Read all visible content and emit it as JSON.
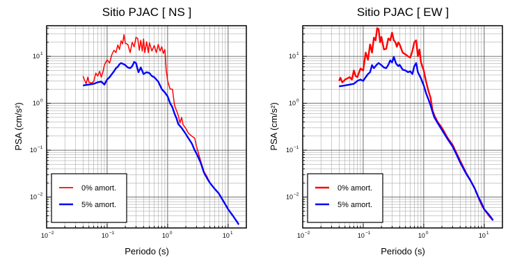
{
  "chart_data": [
    {
      "type": "line",
      "title": "Sitio PJAC [ NS ]",
      "xlabel": "Periodo (s)",
      "ylabel": "PSA (cm/s²)",
      "xscale": "log",
      "yscale": "log",
      "xlim": [
        0.01,
        20
      ],
      "ylim": [
        0.0022,
        45
      ],
      "grid": true,
      "legend_position": "bottom-left",
      "xticks": [
        {
          "base": "10",
          "exp": "-2"
        },
        {
          "base": "10",
          "exp": "-1"
        },
        {
          "base": "10",
          "exp": "0"
        },
        {
          "base": "10",
          "exp": "1"
        }
      ],
      "yticks": [
        {
          "base": "10",
          "exp": "-2"
        },
        {
          "base": "10",
          "exp": "-1"
        },
        {
          "base": "10",
          "exp": "0"
        },
        {
          "base": "10",
          "exp": "1"
        }
      ],
      "series": [
        {
          "name": "0% amort.",
          "color": "#ff0000",
          "x": [
            0.04,
            0.042,
            0.045,
            0.048,
            0.05,
            0.055,
            0.06,
            0.065,
            0.07,
            0.075,
            0.08,
            0.085,
            0.09,
            0.1,
            0.11,
            0.12,
            0.13,
            0.14,
            0.15,
            0.16,
            0.17,
            0.18,
            0.19,
            0.2,
            0.22,
            0.24,
            0.26,
            0.28,
            0.3,
            0.32,
            0.34,
            0.36,
            0.38,
            0.4,
            0.42,
            0.45,
            0.48,
            0.5,
            0.55,
            0.6,
            0.65,
            0.7,
            0.75,
            0.8,
            0.85,
            0.9,
            0.95,
            1.0,
            1.1,
            1.2,
            1.3,
            1.4,
            1.5,
            1.6,
            1.7,
            1.8,
            2.0,
            2.2,
            2.5,
            2.8,
            3.0,
            3.5,
            4.0,
            4.5,
            5.0,
            6.0,
            7.0,
            8.0,
            9.0,
            10.0,
            12.0,
            14.0,
            15.0
          ],
          "y": [
            3.8,
            3.2,
            2.6,
            3.6,
            2.8,
            2.7,
            2.9,
            4.4,
            3.8,
            4.8,
            3.6,
            4.6,
            6.5,
            8.5,
            7.2,
            11.0,
            13.5,
            12.0,
            17.5,
            14.0,
            21.5,
            18.5,
            29.0,
            19.0,
            18.0,
            12.0,
            20.0,
            16.0,
            25.5,
            24.0,
            13.5,
            22.0,
            13.0,
            23.5,
            12.0,
            20.5,
            12.0,
            19.5,
            13.0,
            17.0,
            12.0,
            18.0,
            13.0,
            16.0,
            11.5,
            14.0,
            5.0,
            3.0,
            2.0,
            2.0,
            0.9,
            0.7,
            0.55,
            0.38,
            0.5,
            0.35,
            0.29,
            0.23,
            0.2,
            0.18,
            0.12,
            0.06,
            0.035,
            0.027,
            0.02,
            0.015,
            0.012,
            0.009,
            0.007,
            0.0055,
            0.004,
            0.003,
            0.0026
          ]
        },
        {
          "name": "5% amort.",
          "color": "#0000ff",
          "x": [
            0.04,
            0.045,
            0.05,
            0.06,
            0.07,
            0.08,
            0.09,
            0.1,
            0.11,
            0.12,
            0.13,
            0.14,
            0.15,
            0.16,
            0.17,
            0.18,
            0.2,
            0.22,
            0.24,
            0.26,
            0.28,
            0.3,
            0.33,
            0.36,
            0.4,
            0.45,
            0.5,
            0.55,
            0.6,
            0.7,
            0.8,
            0.9,
            1.0,
            1.1,
            1.2,
            1.3,
            1.4,
            1.5,
            1.7,
            2.0,
            2.2,
            2.5,
            2.8,
            3.0,
            3.5,
            4.0,
            4.5,
            5.0,
            6.0,
            7.0,
            8.0,
            9.0,
            10.0,
            12.0,
            14.0,
            15.0
          ],
          "y": [
            2.4,
            2.45,
            2.5,
            2.6,
            2.8,
            2.9,
            2.5,
            3.2,
            3.6,
            4.2,
            4.8,
            5.6,
            6.0,
            6.8,
            7.2,
            7.0,
            6.5,
            5.8,
            5.6,
            6.2,
            7.6,
            7.2,
            4.6,
            5.8,
            4.2,
            4.6,
            4.4,
            3.8,
            3.6,
            2.9,
            2.0,
            1.7,
            1.4,
            1.0,
            0.82,
            0.6,
            0.48,
            0.36,
            0.3,
            0.22,
            0.18,
            0.14,
            0.1,
            0.085,
            0.055,
            0.033,
            0.025,
            0.02,
            0.015,
            0.012,
            0.009,
            0.007,
            0.0055,
            0.004,
            0.003,
            0.0026
          ]
        }
      ]
    },
    {
      "type": "line",
      "title": "Sitio PJAC [ EW ]",
      "xlabel": "Periodo (s)",
      "ylabel": "PSA (cm/s²)",
      "xscale": "log",
      "yscale": "log",
      "xlim": [
        0.01,
        20
      ],
      "ylim": [
        0.0022,
        45
      ],
      "grid": true,
      "legend_position": "bottom-left",
      "xticks": [
        {
          "base": "10",
          "exp": "-2"
        },
        {
          "base": "10",
          "exp": "-1"
        },
        {
          "base": "10",
          "exp": "0"
        },
        {
          "base": "10",
          "exp": "1"
        }
      ],
      "yticks": [
        {
          "base": "10",
          "exp": "-2"
        },
        {
          "base": "10",
          "exp": "-1"
        },
        {
          "base": "10",
          "exp": "0"
        },
        {
          "base": "10",
          "exp": "1"
        }
      ],
      "series": [
        {
          "name": "0% amort.",
          "color": "#ff0000",
          "x": [
            0.04,
            0.042,
            0.045,
            0.048,
            0.05,
            0.055,
            0.06,
            0.065,
            0.07,
            0.075,
            0.08,
            0.09,
            0.1,
            0.11,
            0.12,
            0.13,
            0.14,
            0.15,
            0.16,
            0.17,
            0.18,
            0.19,
            0.2,
            0.22,
            0.24,
            0.26,
            0.28,
            0.3,
            0.32,
            0.34,
            0.36,
            0.38,
            0.4,
            0.45,
            0.5,
            0.55,
            0.6,
            0.65,
            0.7,
            0.75,
            0.8,
            0.85,
            0.9,
            1.0,
            1.1,
            1.2,
            1.3,
            1.4,
            1.5,
            1.7,
            2.0,
            2.5,
            3.0,
            3.5,
            4.0,
            5.0,
            6.0,
            7.0,
            8.0,
            9.0,
            10.0,
            12.0,
            14.0
          ],
          "y": [
            3.0,
            3.5,
            2.8,
            3.0,
            3.2,
            3.4,
            3.6,
            3.2,
            5.0,
            3.8,
            3.6,
            5.5,
            5.0,
            12.0,
            8.5,
            18.0,
            12.0,
            25.0,
            22.0,
            40.0,
            38.0,
            20.0,
            26.0,
            14.0,
            14.5,
            24.0,
            22.0,
            32.0,
            22.0,
            20.0,
            16.0,
            20.0,
            18.0,
            12.0,
            11.0,
            10.0,
            9.5,
            13.0,
            20.0,
            22.0,
            10.0,
            14.0,
            7.5,
            5.0,
            2.8,
            1.8,
            1.3,
            0.7,
            0.55,
            0.4,
            0.3,
            0.18,
            0.13,
            0.085,
            0.06,
            0.033,
            0.022,
            0.015,
            0.01,
            0.007,
            0.0055,
            0.004,
            0.0032
          ]
        },
        {
          "name": "5% amort.",
          "color": "#0000ff",
          "x": [
            0.04,
            0.045,
            0.05,
            0.06,
            0.07,
            0.08,
            0.09,
            0.1,
            0.11,
            0.12,
            0.13,
            0.14,
            0.15,
            0.16,
            0.17,
            0.18,
            0.2,
            0.22,
            0.24,
            0.26,
            0.28,
            0.3,
            0.32,
            0.35,
            0.38,
            0.4,
            0.45,
            0.5,
            0.55,
            0.6,
            0.65,
            0.7,
            0.75,
            0.8,
            0.9,
            1.0,
            1.1,
            1.2,
            1.3,
            1.4,
            1.5,
            1.7,
            2.0,
            2.5,
            3.0,
            3.5,
            4.0,
            5.0,
            6.0,
            7.0,
            8.0,
            9.0,
            10.0,
            12.0,
            14.0
          ],
          "y": [
            2.3,
            2.35,
            2.4,
            2.5,
            2.6,
            3.0,
            3.2,
            3.0,
            3.6,
            4.2,
            4.6,
            6.5,
            5.6,
            6.2,
            6.8,
            7.2,
            6.5,
            5.8,
            5.6,
            6.6,
            8.2,
            7.4,
            9.8,
            7.0,
            6.2,
            6.6,
            5.2,
            5.0,
            4.6,
            4.8,
            4.2,
            6.2,
            7.2,
            4.6,
            3.4,
            2.4,
            1.6,
            1.2,
            0.9,
            0.65,
            0.5,
            0.38,
            0.27,
            0.17,
            0.12,
            0.08,
            0.055,
            0.032,
            0.022,
            0.015,
            0.01,
            0.0075,
            0.0055,
            0.0042,
            0.0032
          ]
        }
      ]
    }
  ]
}
